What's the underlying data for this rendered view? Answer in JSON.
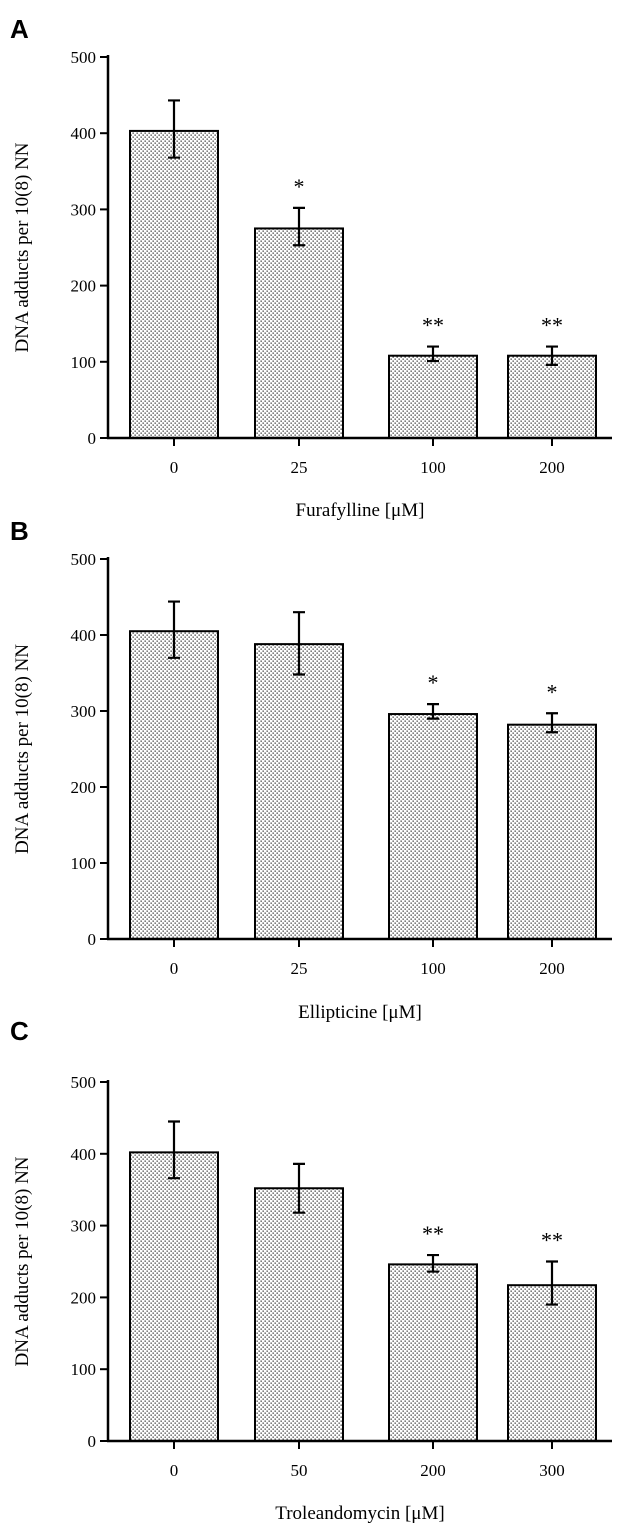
{
  "chart_data": [
    {
      "panel": "A",
      "type": "bar",
      "ylabel": "DNA adducts per 10(8) NN",
      "xlabel": "Furafylline [μM]",
      "ylim": [
        0,
        500
      ],
      "yticks": [
        0,
        100,
        200,
        300,
        400,
        500
      ],
      "categories": [
        "0",
        "25",
        "100",
        "200"
      ],
      "values": [
        403,
        275,
        108,
        108
      ],
      "error_upper": [
        443,
        302,
        120,
        120
      ],
      "error_lower": [
        368,
        253,
        101,
        96
      ],
      "significance": [
        "",
        "*",
        "**",
        "**"
      ]
    },
    {
      "panel": "B",
      "type": "bar",
      "ylabel": "DNA adducts per 10(8) NN",
      "xlabel": "Ellipticine [μM]",
      "ylim": [
        0,
        500
      ],
      "yticks": [
        0,
        100,
        200,
        300,
        400,
        500
      ],
      "categories": [
        "0",
        "25",
        "100",
        "200"
      ],
      "values": [
        405,
        388,
        296,
        282
      ],
      "error_upper": [
        444,
        430,
        309,
        297
      ],
      "error_lower": [
        370,
        348,
        290,
        272
      ],
      "significance": [
        "",
        "",
        "*",
        "*"
      ]
    },
    {
      "panel": "C",
      "type": "bar",
      "ylabel": "DNA adducts per 10(8) NN",
      "xlabel": "Troleandomycin [μM]",
      "ylim": [
        0,
        500
      ],
      "yticks": [
        0,
        100,
        200,
        300,
        400,
        500
      ],
      "categories": [
        "0",
        "50",
        "200",
        "300"
      ],
      "values": [
        402,
        352,
        246,
        217
      ],
      "error_upper": [
        445,
        386,
        259,
        250
      ],
      "error_lower": [
        366,
        318,
        236,
        190
      ],
      "significance": [
        "",
        "",
        "**",
        "**"
      ]
    }
  ]
}
